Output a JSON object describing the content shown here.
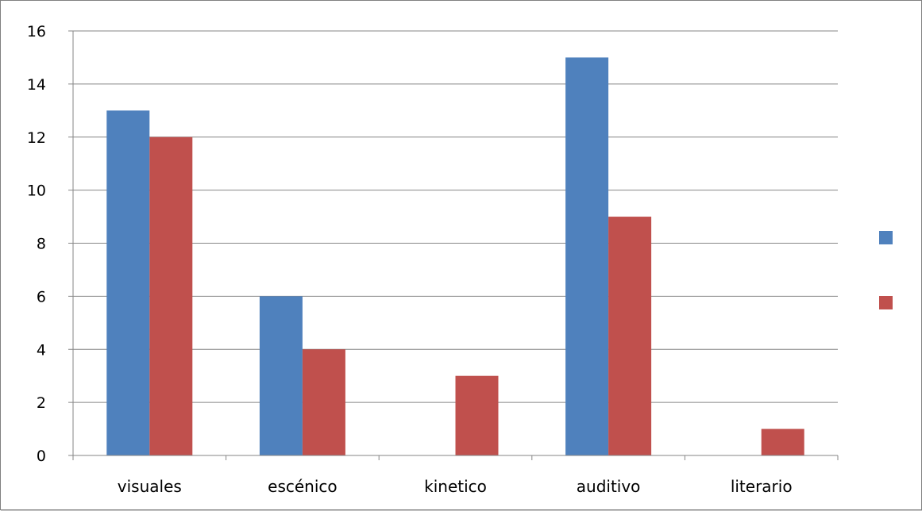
{
  "chart_data": {
    "type": "bar",
    "categories": [
      "visuales",
      "escénico",
      "kinetico",
      "auditivo",
      "literario"
    ],
    "series": [
      {
        "values": [
          13,
          6,
          0,
          15,
          0
        ],
        "color": "#4F81BD"
      },
      {
        "values": [
          12,
          4,
          3,
          9,
          1
        ],
        "color": "#C0504D"
      }
    ],
    "ylim": [
      0,
      16
    ],
    "yticks": [
      0,
      2,
      4,
      6,
      8,
      10,
      12,
      14,
      16
    ],
    "grid": true,
    "legend_position": "right"
  }
}
